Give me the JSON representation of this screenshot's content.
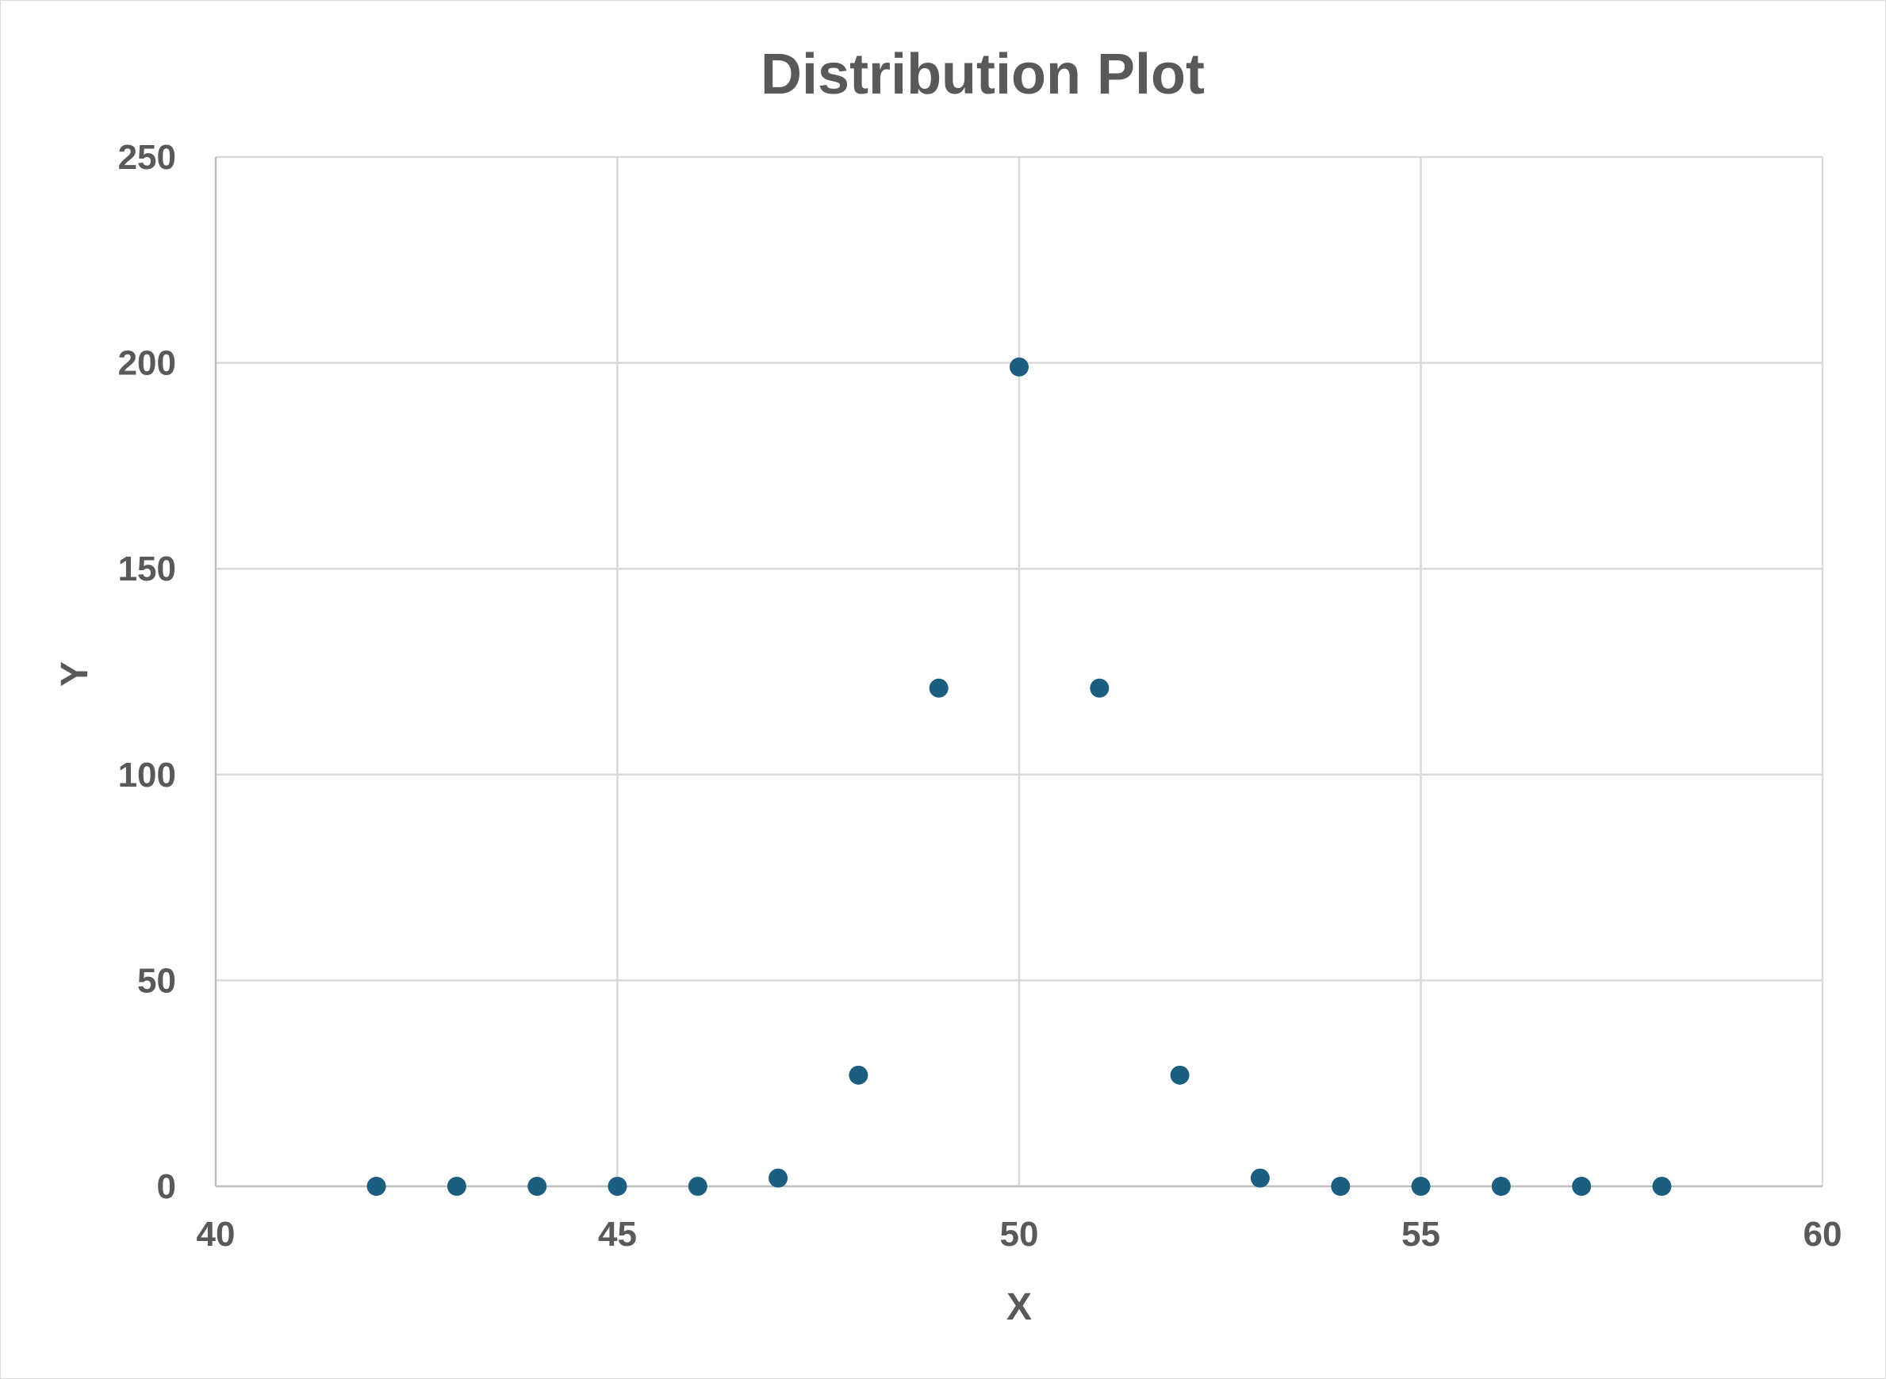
{
  "chart_data": {
    "type": "scatter",
    "title": "Distribution Plot",
    "xlabel": "X",
    "ylabel": "Y",
    "xlim": [
      40,
      60
    ],
    "ylim": [
      0,
      250
    ],
    "xticks": [
      40,
      45,
      50,
      55,
      60
    ],
    "yticks": [
      0,
      50,
      100,
      150,
      200,
      250
    ],
    "grid": true,
    "legend": "none",
    "marker_color": "#1b5e80",
    "series": [
      {
        "x": [
          42,
          43,
          44,
          45,
          46,
          47,
          48,
          49,
          50,
          51,
          52,
          53,
          54,
          55,
          56,
          57,
          58
        ],
        "y": [
          0,
          0,
          0,
          0,
          0,
          2,
          27,
          121,
          199,
          121,
          27,
          2,
          0,
          0,
          0,
          0,
          0
        ]
      }
    ]
  }
}
